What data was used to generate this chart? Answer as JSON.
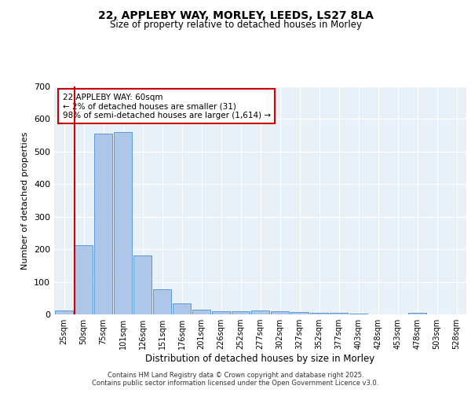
{
  "title_line1": "22, APPLEBY WAY, MORLEY, LEEDS, LS27 8LA",
  "title_line2": "Size of property relative to detached houses in Morley",
  "xlabel": "Distribution of detached houses by size in Morley",
  "ylabel": "Number of detached properties",
  "bar_labels": [
    "25sqm",
    "50sqm",
    "75sqm",
    "101sqm",
    "126sqm",
    "151sqm",
    "176sqm",
    "201sqm",
    "226sqm",
    "252sqm",
    "277sqm",
    "302sqm",
    "327sqm",
    "352sqm",
    "377sqm",
    "403sqm",
    "428sqm",
    "453sqm",
    "478sqm",
    "503sqm",
    "528sqm"
  ],
  "bar_values": [
    13,
    213,
    555,
    560,
    182,
    78,
    33,
    14,
    10,
    9,
    11,
    10,
    7,
    5,
    4,
    3,
    1,
    0,
    5,
    1,
    0
  ],
  "bar_color": "#aec6e8",
  "bar_edge_color": "#5b9bd5",
  "marker_line_index": 1,
  "marker_line_color": "#cc0000",
  "annotation_text": "22 APPLEBY WAY: 60sqm\n← 2% of detached houses are smaller (31)\n98% of semi-detached houses are larger (1,614) →",
  "annotation_box_color": "#cc0000",
  "ylim": [
    0,
    700
  ],
  "yticks": [
    0,
    100,
    200,
    300,
    400,
    500,
    600,
    700
  ],
  "background_color": "#e8f0f8",
  "grid_color": "#ffffff",
  "footer_line1": "Contains HM Land Registry data © Crown copyright and database right 2025.",
  "footer_line2": "Contains public sector information licensed under the Open Government Licence v3.0."
}
